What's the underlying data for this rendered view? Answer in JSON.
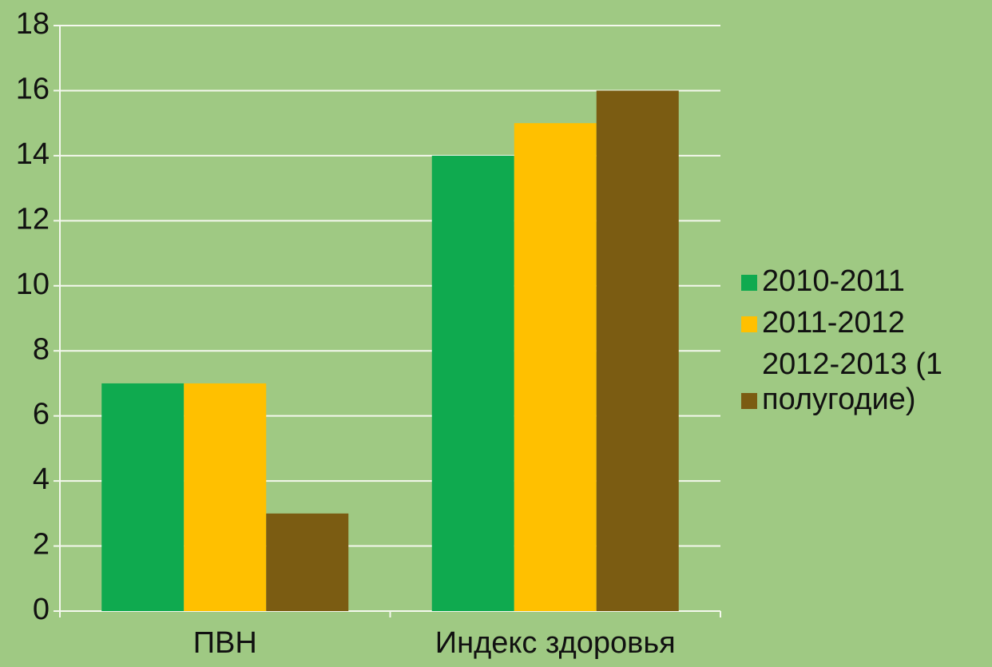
{
  "chart_data": {
    "type": "bar",
    "categories": [
      "ПВН",
      "Индекс здоровья"
    ],
    "series": [
      {
        "name": "2010-2011",
        "color": "#0faa4f",
        "values": [
          7,
          14
        ]
      },
      {
        "name": "2011-2012",
        "color": "#ffc000",
        "values": [
          7,
          15
        ]
      },
      {
        "name": "2012-2013 (1 полугодие)",
        "color": "#7b5c12",
        "values": [
          3,
          16
        ]
      }
    ],
    "ylim": [
      0,
      18
    ],
    "yticks": [
      0,
      2,
      4,
      6,
      8,
      10,
      12,
      14,
      16,
      18
    ],
    "grid": true,
    "legend": "right"
  }
}
